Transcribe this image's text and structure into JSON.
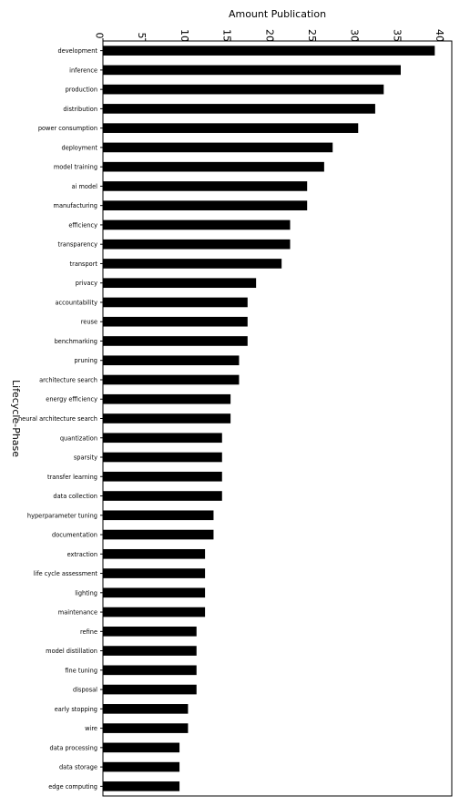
{
  "chart_data": {
    "type": "bar",
    "orientation": "horizontal",
    "xlabel": "Amount Publication",
    "ylabel": "Lifecycle-Phase",
    "xlim": [
      0,
      41
    ],
    "xticks": [
      0,
      5,
      10,
      15,
      20,
      25,
      30,
      35,
      40
    ],
    "grid": false,
    "categories": [
      "development",
      "inference",
      "production",
      "distribution",
      "power consumption",
      "deployment",
      "model training",
      "ai model",
      "manufacturing",
      "efficiency",
      "transparency",
      "transport",
      "privacy",
      "accountability",
      "reuse",
      "benchmarking",
      "pruning",
      "architecture search",
      "energy efficiency",
      "neural architecture search",
      "quantization",
      "sparsity",
      "transfer learning",
      "data collection",
      "hyperparameter tuning",
      "documentation",
      "extraction",
      "life cycle assessment",
      "lighting",
      "maintenance",
      "refine",
      "model distillation",
      "fine tuning",
      "disposal",
      "early stopping",
      "wire",
      "data processing",
      "data storage",
      "edge computing"
    ],
    "values": [
      39,
      35,
      33,
      32,
      30,
      27,
      26,
      24,
      24,
      22,
      22,
      21,
      18,
      17,
      17,
      17,
      16,
      16,
      15,
      15,
      14,
      14,
      14,
      14,
      13,
      13,
      12,
      12,
      12,
      12,
      11,
      11,
      11,
      11,
      10,
      10,
      9,
      9,
      9
    ],
    "bar_color": "#000000"
  }
}
